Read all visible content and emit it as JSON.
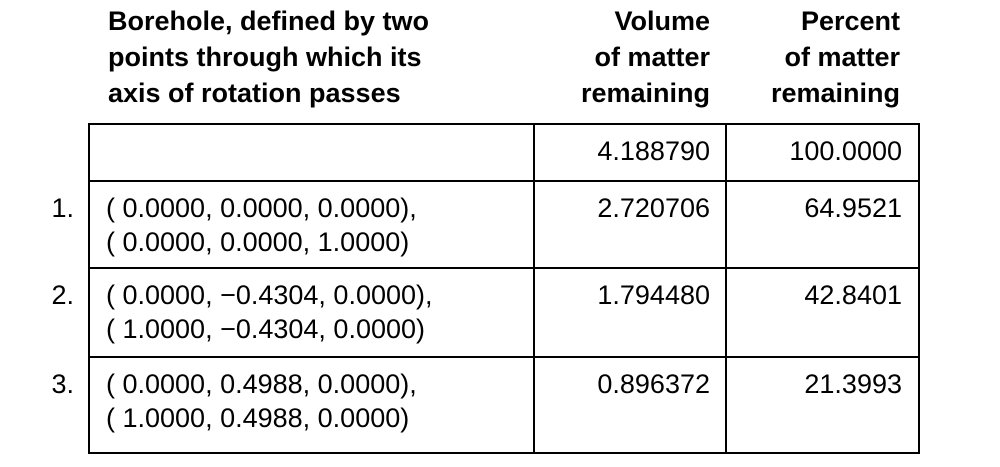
{
  "table": {
    "headers": [
      [
        "Borehole, defined by two",
        "points through which its",
        "axis of rotation passes"
      ],
      [
        "Volume",
        "of matter",
        "remaining"
      ],
      [
        "Percent",
        "of matter",
        "remaining"
      ]
    ],
    "rows": [
      {
        "volume": "4.188790",
        "percent": "100.0000"
      },
      {
        "number": "1.",
        "borehole": [
          "( 0.0000, 0.0000, 0.0000),",
          "( 0.0000, 0.0000, 1.0000)"
        ],
        "volume": "2.720706",
        "percent": "64.9521"
      },
      {
        "number": "2.",
        "borehole": [
          "( 0.0000, −0.4304, 0.0000),",
          "( 1.0000, −0.4304, 0.0000)"
        ],
        "volume": "1.794480",
        "percent": "42.8401"
      },
      {
        "number": "3.",
        "borehole": [
          "( 0.0000, 0.4988, 0.0000),",
          "( 1.0000, 0.4988, 0.0000)"
        ],
        "volume": "0.896372",
        "percent": "21.3993"
      }
    ]
  }
}
